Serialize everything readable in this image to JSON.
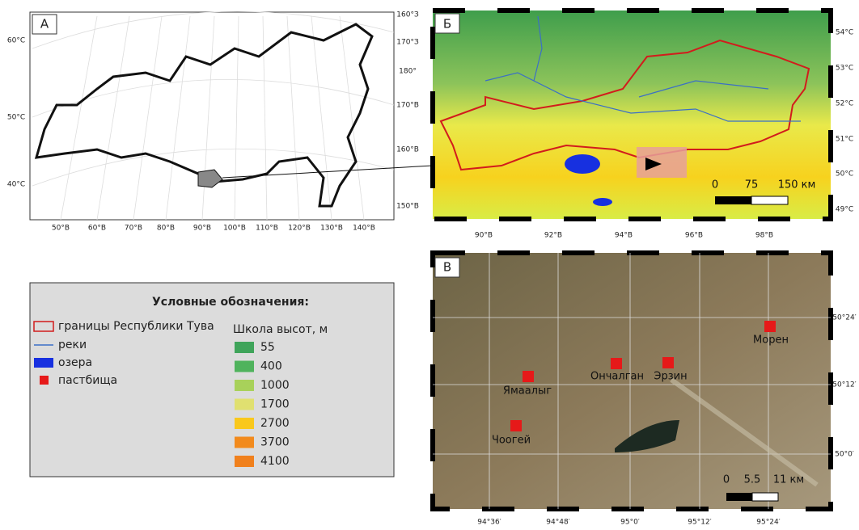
{
  "panel_a": {
    "label": "А",
    "lat_left": [
      "60°С",
      "50°С",
      "40°С"
    ],
    "lon_right": [
      "160°З",
      "170°З",
      "180°",
      "170°В",
      "160°В",
      "150°В"
    ],
    "lon_bottom": [
      "50°В",
      "60°В",
      "70°В",
      "80°В",
      "90°В",
      "100°В",
      "110°В",
      "120°В",
      "130°В",
      "140°В"
    ]
  },
  "panel_b": {
    "label": "Б",
    "lat_right": [
      "54°С",
      "53°С",
      "52°С",
      "51°С",
      "50°С",
      "49°С"
    ],
    "lon_bottom": [
      "90°В",
      "92°В",
      "94°В",
      "96°В",
      "98°В"
    ],
    "scale": [
      "0",
      "75",
      "150 км"
    ]
  },
  "panel_c": {
    "label": "В",
    "lat_right": [
      "50°24′",
      "50°12′",
      "50°0′"
    ],
    "lon_bottom": [
      "94°36′",
      "94°48′",
      "95°0′",
      "95°12′",
      "95°24′"
    ],
    "sites": [
      "Ямаалыг",
      "Ончалган",
      "Эрзин",
      "Морен",
      "Чоогей"
    ],
    "scale": [
      "0",
      "5.5",
      "11 км"
    ]
  },
  "legend": {
    "title": "Условные обозначения:",
    "items": [
      "границы Республики Тува",
      "реки",
      "озера",
      "пастбища"
    ],
    "elevation_title": "Школа высот, м",
    "elevation": [
      "55",
      "400",
      "1000",
      "1700",
      "2700",
      "3700",
      "4100"
    ]
  }
}
